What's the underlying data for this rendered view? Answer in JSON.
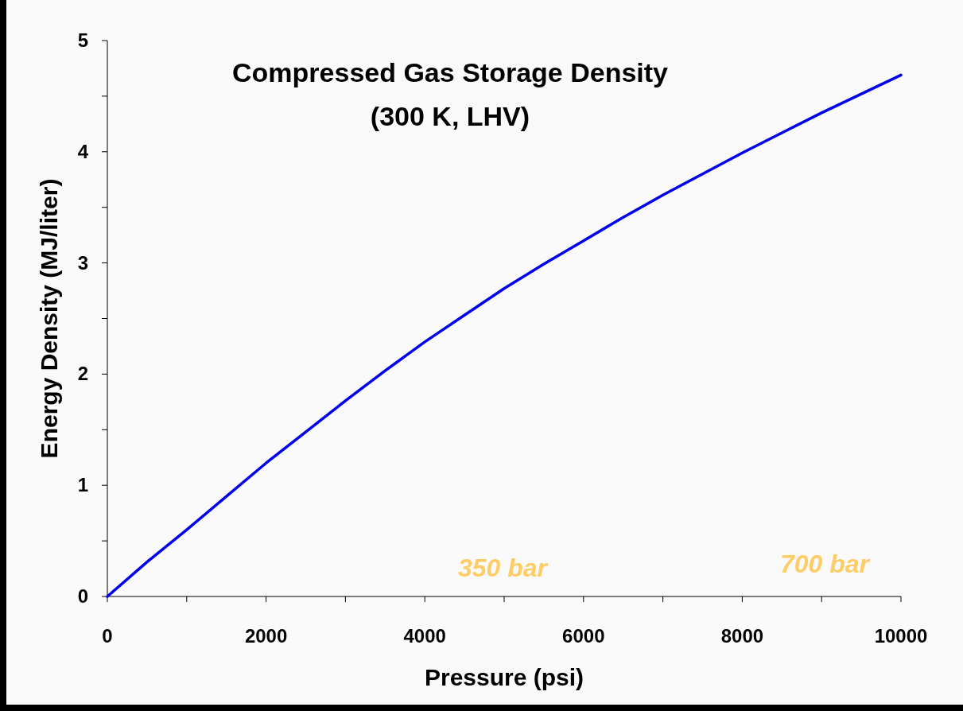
{
  "chart_data": {
    "type": "line",
    "title": "Compressed Gas Storage Density",
    "subtitle": "(300 K, LHV)",
    "xlabel": "Pressure (psi)",
    "ylabel": "Energy Density (MJ/liter)",
    "x": [
      0,
      500,
      1000,
      1500,
      2000,
      2500,
      3000,
      3500,
      4000,
      4500,
      5000,
      5500,
      6000,
      6500,
      7000,
      7500,
      8000,
      8500,
      9000,
      9500,
      10000
    ],
    "series": [
      {
        "color": "#0000ee",
        "values": [
          0,
          0.31,
          0.6,
          0.9,
          1.2,
          1.48,
          1.76,
          2.03,
          2.29,
          2.53,
          2.77,
          2.99,
          3.2,
          3.41,
          3.61,
          3.8,
          3.99,
          4.17,
          4.35,
          4.52,
          4.69
        ]
      }
    ],
    "xlim": [
      0,
      10000
    ],
    "ylim": [
      0,
      5
    ],
    "xticks": [
      0,
      {
        "value": 1000,
        "label": null
      },
      2000,
      {
        "value": 3000,
        "label": null
      },
      4000,
      {
        "value": 5000,
        "label": null
      },
      6000,
      {
        "value": 7000,
        "label": null
      },
      8000,
      {
        "value": 9000,
        "label": null
      },
      10000
    ],
    "yticks": [
      0,
      {
        "value": 0.5,
        "label": null
      },
      1,
      {
        "value": 1.5,
        "label": null
      },
      2,
      {
        "value": 2.5,
        "label": null
      },
      3,
      {
        "value": 3.5,
        "label": null
      },
      4,
      {
        "value": 4.5,
        "label": null
      },
      5
    ],
    "annotations": [
      "350 bar",
      "700 bar"
    ],
    "grid": false,
    "marker": "none",
    "line_style": "solid"
  }
}
